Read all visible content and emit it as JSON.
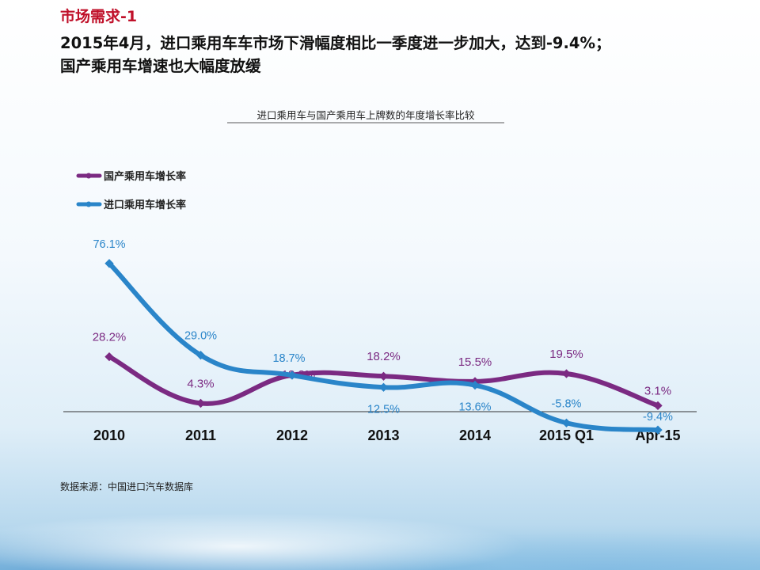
{
  "page": {
    "section_tag": "市场需求-1",
    "headline_line1": "2015年4月，进口乘用车车市场下滑幅度相比一季度进一步加大，达到-9.4%；",
    "headline_line2": "国产乘用车增速也大幅度放缓",
    "source": "数据来源：中国进口汽车数据库"
  },
  "chart_data": {
    "type": "line",
    "title": "进口乘用车与国产乘用车上牌数的年度增长率比较",
    "categories": [
      "2010",
      "2011",
      "2012",
      "2013",
      "2014",
      "2015 Q1",
      "Apr-15"
    ],
    "value_unit": "%",
    "ylim": [
      -15,
      85
    ],
    "grid": false,
    "legend_position": "top-left",
    "series": [
      {
        "name": "国产乘用车增长率",
        "color": "#7b2a82",
        "values": [
          28.2,
          4.3,
          18.8,
          18.2,
          15.5,
          19.5,
          3.1
        ],
        "labels": [
          "28.2%",
          "4.3%",
          "18.8%",
          "18.2%",
          "15.5%",
          "19.5%",
          "3.1%"
        ]
      },
      {
        "name": "进口乘用车增长率",
        "color": "#2a85c9",
        "values": [
          76.1,
          29.0,
          18.7,
          12.5,
          13.6,
          -5.8,
          -9.4
        ],
        "labels": [
          "76.1%",
          "29.0%",
          "18.7%",
          "12.5%",
          "13.6%",
          "-5.8%",
          "-9.4%"
        ]
      }
    ]
  }
}
